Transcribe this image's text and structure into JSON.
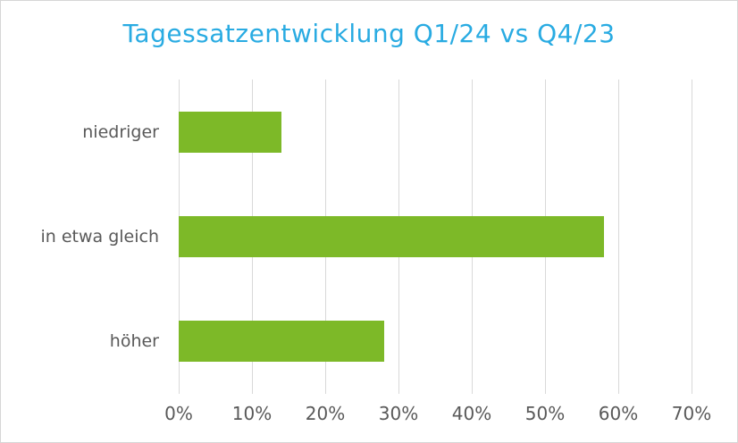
{
  "chart_data": {
    "type": "bar",
    "orientation": "horizontal",
    "title": "Tagessatzentwicklung Q1/24 vs Q4/23",
    "categories": [
      "niedriger",
      "in etwa gleich",
      "höher"
    ],
    "values": [
      14,
      58,
      28
    ],
    "unit": "%",
    "xlabel": "",
    "ylabel": "",
    "xlim": [
      0,
      70
    ],
    "xtick_step": 10,
    "xtick_labels": [
      "0%",
      "10%",
      "20%",
      "30%",
      "40%",
      "50%",
      "60%",
      "70%"
    ],
    "grid": true,
    "legend": false
  },
  "colors": {
    "title": "#29abe2",
    "bar": "#7db928",
    "gridline": "#d9d9d9",
    "axis_text": "#595959"
  }
}
